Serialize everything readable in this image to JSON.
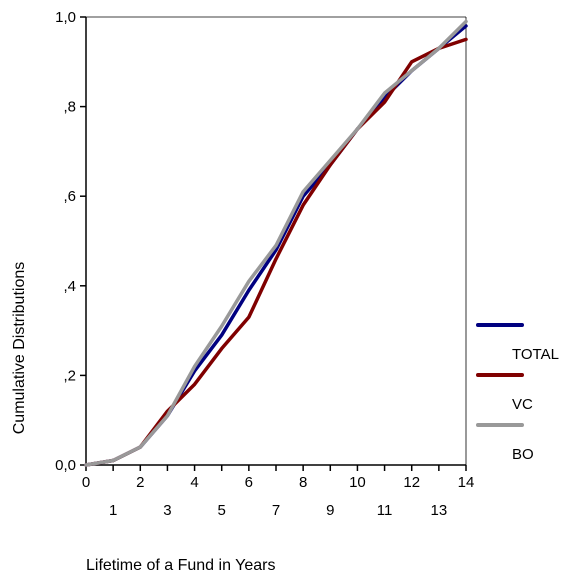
{
  "chart_data": {
    "type": "line",
    "title": "",
    "xlabel": "Lifetime of a Fund in Years",
    "ylabel": "Cumulative Distributions",
    "xlim": [
      0,
      14
    ],
    "ylim": [
      0,
      1
    ],
    "x": [
      0,
      1,
      2,
      3,
      4,
      5,
      6,
      7,
      8,
      9,
      10,
      11,
      12,
      13,
      14
    ],
    "x_tick_labels": [
      "0",
      "1",
      "2",
      "3",
      "4",
      "5",
      "6",
      "7",
      "8",
      "9",
      "10",
      "11",
      "12",
      "13",
      "14"
    ],
    "y_ticks": [
      0,
      0.2,
      0.4,
      0.6,
      0.8,
      1.0
    ],
    "y_tick_labels": [
      "0,0",
      ",2",
      ",4",
      ",6",
      ",8",
      "1,0"
    ],
    "grid": false,
    "legend_position": "right",
    "series": [
      {
        "name": "TOTAL",
        "color": "#000080",
        "values": [
          0.0,
          0.01,
          0.04,
          0.11,
          0.21,
          0.29,
          0.39,
          0.48,
          0.6,
          0.67,
          0.75,
          0.82,
          0.88,
          0.93,
          0.98
        ]
      },
      {
        "name": "VC",
        "color": "#800000",
        "values": [
          0.0,
          0.01,
          0.04,
          0.12,
          0.18,
          0.26,
          0.33,
          0.46,
          0.58,
          0.67,
          0.75,
          0.81,
          0.9,
          0.93,
          0.95
        ]
      },
      {
        "name": "BO",
        "color": "#999999",
        "values": [
          0.0,
          0.01,
          0.04,
          0.11,
          0.22,
          0.31,
          0.41,
          0.49,
          0.61,
          0.68,
          0.75,
          0.83,
          0.88,
          0.93,
          0.99
        ]
      }
    ]
  }
}
